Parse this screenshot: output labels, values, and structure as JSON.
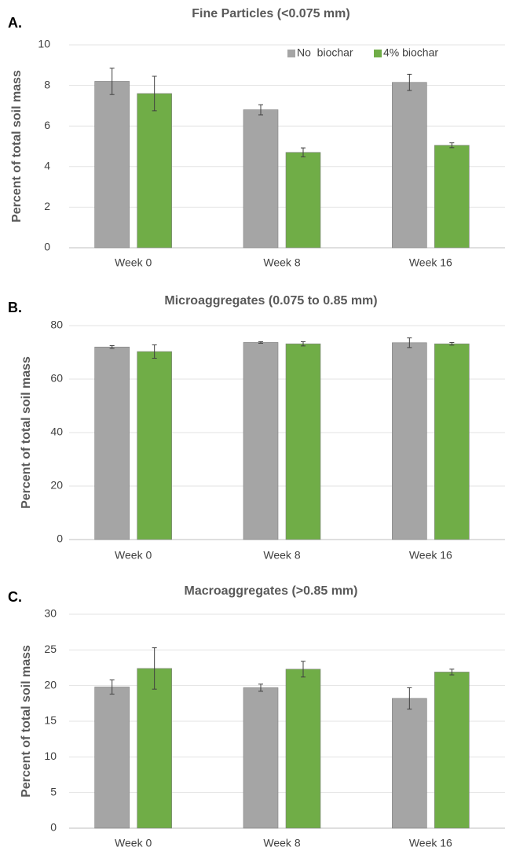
{
  "chart_data": [
    {
      "type": "bar",
      "panel_label": "A.",
      "title": "Fine Particles (<0.075 mm)",
      "y_label": "Percent of total soil mass",
      "categories": [
        "Week 0",
        "Week 8",
        "Week 16"
      ],
      "series": [
        {
          "name": "No  biochar",
          "color": "#a5a5a5",
          "values": [
            8.2,
            6.8,
            8.15
          ],
          "errors": [
            0.65,
            0.25,
            0.4
          ]
        },
        {
          "name": "4% biochar",
          "color": "#70ad47",
          "values": [
            7.6,
            4.7,
            5.05
          ],
          "errors": [
            0.85,
            0.22,
            0.12
          ]
        }
      ],
      "ylim": [
        0,
        10
      ],
      "yticks": [
        0,
        2,
        4,
        6,
        8,
        10
      ],
      "grid": true,
      "legend": "top-right"
    },
    {
      "type": "bar",
      "panel_label": "B.",
      "title": "Microaggregates (0.075 to 0.85 mm)",
      "y_label": "Percent of total soil mass",
      "categories": [
        "Week 0",
        "Week 8",
        "Week 16"
      ],
      "series": [
        {
          "color": "#a5a5a5",
          "values": [
            72,
            73.7,
            73.6
          ],
          "errors": [
            0.5,
            0.3,
            1.8
          ]
        },
        {
          "color": "#70ad47",
          "values": [
            70.3,
            73.2,
            73.2
          ],
          "errors": [
            2.5,
            0.8,
            0.5
          ]
        }
      ],
      "ylim": [
        0,
        80
      ],
      "yticks": [
        0,
        20,
        40,
        60,
        80
      ],
      "grid": true
    },
    {
      "type": "bar",
      "panel_label": "C.",
      "title": "Macroaggregates (>0.85 mm)",
      "y_label": "Percent of total soil mass",
      "categories": [
        "Week 0",
        "Week 8",
        "Week 16"
      ],
      "series": [
        {
          "color": "#a5a5a5",
          "values": [
            19.8,
            19.7,
            18.2
          ],
          "errors": [
            1.0,
            0.5,
            1.5
          ]
        },
        {
          "color": "#70ad47",
          "values": [
            22.4,
            22.3,
            21.9
          ],
          "errors": [
            2.9,
            1.1,
            0.4
          ]
        }
      ],
      "ylim": [
        0,
        30
      ],
      "yticks": [
        0,
        5,
        10,
        15,
        20,
        25,
        30
      ],
      "grid": true
    }
  ]
}
